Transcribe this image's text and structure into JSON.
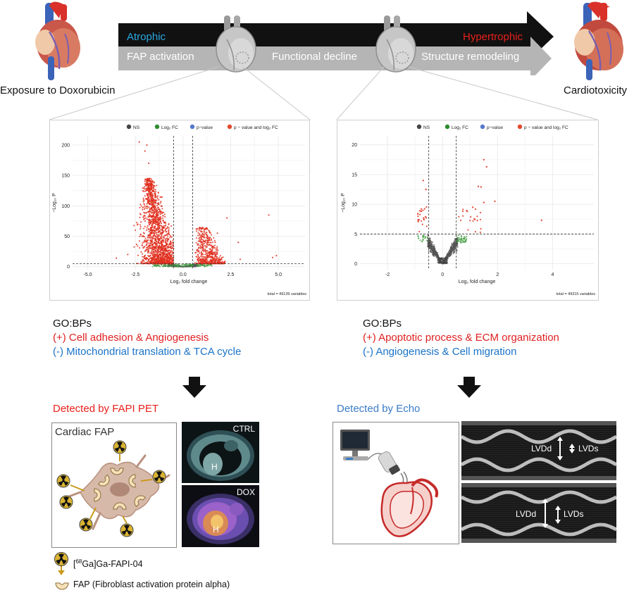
{
  "top": {
    "left_label": "Exposure to Doxorubicin",
    "right_label": "Cardiotoxicity",
    "arrow_upper_left": "Atrophic",
    "arrow_upper_right": "Hypertrophic",
    "stages": [
      "FAP activation",
      "Functional decline",
      "Structure remodeling"
    ],
    "colors": {
      "atrophic": "#2aa7e0",
      "hypertrophic": "#e8201a",
      "dark_arrow": "#111111",
      "gray_arrow": "#b5b5b5"
    }
  },
  "volcano_left": {
    "legend": [
      "NS",
      "Log₂ FC",
      "p−value",
      "p − value and log₂ FC"
    ],
    "ylabel": "−Log₁₀ P",
    "xlabel": "Log₂ fold change",
    "total": "total = 49139 variables",
    "chart_data": {
      "type": "scatter",
      "xticks": [
        "-5.0",
        "-2.5",
        "0.0",
        "2.5",
        "5.0"
      ],
      "yticks": [
        "0",
        "50",
        "100",
        "150",
        "200"
      ],
      "xlim": [
        -5.8,
        6.4
      ],
      "ylim": [
        -5,
        215
      ],
      "fc_cutoff": [
        -0.5,
        0.5
      ],
      "p_cutoff": 5
    }
  },
  "volcano_right": {
    "legend": [
      "NS",
      "Log₂ FC",
      "p−value",
      "p − value and log₂ FC"
    ],
    "ylabel": "−Log₁₀ P",
    "xlabel": "Log₂ fold change",
    "total": "total = 49315 variables",
    "chart_data": {
      "type": "scatter",
      "xticks": [
        "-2",
        "0",
        "2",
        "4"
      ],
      "yticks": [
        "0",
        "5",
        "10",
        "15",
        "20"
      ],
      "xlim": [
        -3.0,
        5.5
      ],
      "ylim": [
        -1,
        21.5
      ],
      "fc_cutoff": [
        -0.5,
        0.5
      ],
      "p_cutoff": 5
    }
  },
  "go_left": {
    "title": "GO:BPs",
    "pos": "(+) Cell adhesion & Angiogenesis",
    "neg": "(-)  Mitochondrial translation & TCA cycle"
  },
  "go_right": {
    "title": "GO:BPs",
    "pos": "(+) Apoptotic process & ECM organization",
    "neg": "(-)  Angiogenesis & Cell migration"
  },
  "detect_left": {
    "title": "Detected by FAPI PET",
    "box_title": "Cardiac FAP",
    "ctrl": "CTRL",
    "dox": "DOX",
    "h": "H",
    "legend_tracer": "[68Ga]Ga-FAPI-04",
    "legend_fap": "FAP (Fibroblast activation protein alpha)"
  },
  "detect_right": {
    "title": "Detected by Echo",
    "lvdd": "LVDd",
    "lvds": "LVDs"
  }
}
